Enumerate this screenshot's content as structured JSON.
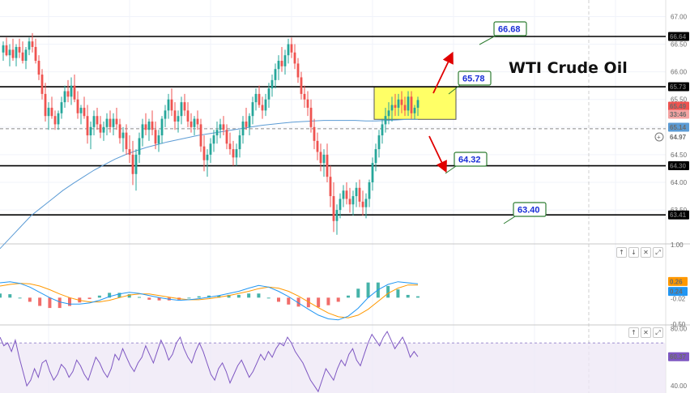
{
  "chart_data": {
    "type": "candlestick",
    "title": "WTI Crude Oil",
    "xlabel": "",
    "ylabel": "",
    "price_pane": {
      "ylim": [
        62.9,
        67.3
      ],
      "y_ticks": [
        63.5,
        64.0,
        64.5,
        65.0,
        65.5,
        66.0,
        66.5,
        67.0
      ],
      "y_tick_labels": [
        "63.50",
        "64.00",
        "64.50",
        "65.00",
        "65.50",
        "66.00",
        "66.50",
        "67.00"
      ],
      "horizontal_levels": [
        66.64,
        65.73,
        64.3,
        63.41
      ],
      "level_labels": [
        "66.64",
        "65.73",
        "64.30",
        "63.41"
      ],
      "dashed_line": 64.97,
      "dashed_line_label": "64.97",
      "last_price_label": "65.49",
      "countdown_label": "33:46",
      "moving_average_label": "65.14",
      "highlight_zone": [
        65.14,
        65.73
      ],
      "callouts": [
        "66.68",
        "65.78",
        "64.32",
        "63.40"
      ],
      "candles_ohlc": [
        [
          66.35,
          66.55,
          66.2,
          66.48
        ],
        [
          66.48,
          66.62,
          66.28,
          66.3
        ],
        [
          66.3,
          66.5,
          66.1,
          66.4
        ],
        [
          66.4,
          66.6,
          66.2,
          66.25
        ],
        [
          66.25,
          66.5,
          66.1,
          66.45
        ],
        [
          66.45,
          66.6,
          66.25,
          66.35
        ],
        [
          66.35,
          66.55,
          66.15,
          66.2
        ],
        [
          66.2,
          66.45,
          66.05,
          66.4
        ],
        [
          66.4,
          66.62,
          66.3,
          66.55
        ],
        [
          66.55,
          66.7,
          66.35,
          66.45
        ],
        [
          66.45,
          66.6,
          66.15,
          66.2
        ],
        [
          66.2,
          66.3,
          65.85,
          65.95
        ],
        [
          65.95,
          66.05,
          65.5,
          65.6
        ],
        [
          65.6,
          65.8,
          65.1,
          65.2
        ],
        [
          65.2,
          65.45,
          64.95,
          65.35
        ],
        [
          65.35,
          65.55,
          65.15,
          65.2
        ],
        [
          65.2,
          65.3,
          64.95,
          65.05
        ],
        [
          65.05,
          65.3,
          64.95,
          65.25
        ],
        [
          65.25,
          65.55,
          65.15,
          65.45
        ],
        [
          65.45,
          65.75,
          65.35,
          65.65
        ],
        [
          65.65,
          65.85,
          65.45,
          65.55
        ],
        [
          65.55,
          65.9,
          65.4,
          65.75
        ],
        [
          65.75,
          65.95,
          65.45,
          65.5
        ],
        [
          65.5,
          65.65,
          65.15,
          65.25
        ],
        [
          65.25,
          65.4,
          65.05,
          65.35
        ],
        [
          65.35,
          65.55,
          65.15,
          65.2
        ],
        [
          65.2,
          65.4,
          64.7,
          64.85
        ],
        [
          64.85,
          65.1,
          64.6,
          65.0
        ],
        [
          65.0,
          65.3,
          64.85,
          65.2
        ],
        [
          65.2,
          65.35,
          64.95,
          65.05
        ],
        [
          65.05,
          65.2,
          64.8,
          64.9
        ],
        [
          64.9,
          65.1,
          64.75,
          65.0
        ],
        [
          65.0,
          65.25,
          64.85,
          65.15
        ],
        [
          65.15,
          65.3,
          64.9,
          65.0
        ],
        [
          65.0,
          65.25,
          64.85,
          65.15
        ],
        [
          65.15,
          65.35,
          64.95,
          65.05
        ],
        [
          65.05,
          65.15,
          64.7,
          64.8
        ],
        [
          64.8,
          65.0,
          64.55,
          64.9
        ],
        [
          64.9,
          65.05,
          64.5,
          64.6
        ],
        [
          64.6,
          64.85,
          64.35,
          64.5
        ],
        [
          64.5,
          64.75,
          63.95,
          64.15
        ],
        [
          64.15,
          64.6,
          63.85,
          64.5
        ],
        [
          64.5,
          64.9,
          64.35,
          64.8
        ],
        [
          64.8,
          65.15,
          64.65,
          65.05
        ],
        [
          65.05,
          65.25,
          64.85,
          64.95
        ],
        [
          64.95,
          65.15,
          64.75,
          65.1
        ],
        [
          65.1,
          65.3,
          64.85,
          64.95
        ],
        [
          64.95,
          65.1,
          64.6,
          64.7
        ],
        [
          64.7,
          64.95,
          64.55,
          64.85
        ],
        [
          64.85,
          65.2,
          64.7,
          65.15
        ],
        [
          65.15,
          65.4,
          65.0,
          65.3
        ],
        [
          65.3,
          65.6,
          65.15,
          65.5
        ],
        [
          65.5,
          65.7,
          65.2,
          65.3
        ],
        [
          65.3,
          65.45,
          64.95,
          65.1
        ],
        [
          65.1,
          65.3,
          64.9,
          65.2
        ],
        [
          65.2,
          65.55,
          65.05,
          65.45
        ],
        [
          65.45,
          65.6,
          65.2,
          65.3
        ],
        [
          65.3,
          65.45,
          65.0,
          65.1
        ],
        [
          65.1,
          65.25,
          64.9,
          65.0
        ],
        [
          65.0,
          65.2,
          64.85,
          65.15
        ],
        [
          65.15,
          65.3,
          64.95,
          65.05
        ],
        [
          65.05,
          65.15,
          64.55,
          64.65
        ],
        [
          64.65,
          64.85,
          64.2,
          64.4
        ],
        [
          64.4,
          64.6,
          64.1,
          64.5
        ],
        [
          64.5,
          64.8,
          64.35,
          64.7
        ],
        [
          64.7,
          64.95,
          64.55,
          64.85
        ],
        [
          64.85,
          65.1,
          64.7,
          64.95
        ],
        [
          64.95,
          65.15,
          64.8,
          65.05
        ],
        [
          65.05,
          65.2,
          64.85,
          64.95
        ],
        [
          64.95,
          65.05,
          64.6,
          64.7
        ],
        [
          64.7,
          64.9,
          64.5,
          64.6
        ],
        [
          64.6,
          64.75,
          64.3,
          64.45
        ],
        [
          64.45,
          64.7,
          64.3,
          64.6
        ],
        [
          64.6,
          64.95,
          64.45,
          64.85
        ],
        [
          64.85,
          65.2,
          64.7,
          65.1
        ],
        [
          65.1,
          65.35,
          64.95,
          65.0
        ],
        [
          65.0,
          65.25,
          64.85,
          65.2
        ],
        [
          65.2,
          65.55,
          65.05,
          65.45
        ],
        [
          65.45,
          65.7,
          65.3,
          65.6
        ],
        [
          65.6,
          65.75,
          65.35,
          65.4
        ],
        [
          65.4,
          65.55,
          65.15,
          65.3
        ],
        [
          65.3,
          65.6,
          65.2,
          65.5
        ],
        [
          65.5,
          65.8,
          65.35,
          65.7
        ],
        [
          65.7,
          65.95,
          65.55,
          65.85
        ],
        [
          65.85,
          66.15,
          65.7,
          66.05
        ],
        [
          66.05,
          66.3,
          65.85,
          66.2
        ],
        [
          66.2,
          66.45,
          66.0,
          66.1
        ],
        [
          66.1,
          66.4,
          65.95,
          66.3
        ],
        [
          66.3,
          66.6,
          66.15,
          66.5
        ],
        [
          66.5,
          66.62,
          66.25,
          66.35
        ],
        [
          66.35,
          66.5,
          66.05,
          66.15
        ],
        [
          66.15,
          66.25,
          65.8,
          65.9
        ],
        [
          65.9,
          66.0,
          65.5,
          65.6
        ],
        [
          65.6,
          65.75,
          65.35,
          65.5
        ],
        [
          65.5,
          65.65,
          65.2,
          65.35
        ],
        [
          65.35,
          65.5,
          64.9,
          65.0
        ],
        [
          65.0,
          65.15,
          64.6,
          64.75
        ],
        [
          64.75,
          64.9,
          64.4,
          64.55
        ],
        [
          64.55,
          64.7,
          64.2,
          64.35
        ],
        [
          64.35,
          64.6,
          64.1,
          64.5
        ],
        [
          64.5,
          64.7,
          64.0,
          64.1
        ],
        [
          64.1,
          64.3,
          63.55,
          63.75
        ],
        [
          63.75,
          64.0,
          63.1,
          63.3
        ],
        [
          63.3,
          63.6,
          63.05,
          63.5
        ],
        [
          63.5,
          63.8,
          63.35,
          63.7
        ],
        [
          63.7,
          63.95,
          63.55,
          63.85
        ],
        [
          63.85,
          64.0,
          63.6,
          63.7
        ],
        [
          63.7,
          63.9,
          63.45,
          63.6
        ],
        [
          63.6,
          63.85,
          63.4,
          63.75
        ],
        [
          63.75,
          64.0,
          63.55,
          63.9
        ],
        [
          63.9,
          64.05,
          63.55,
          63.65
        ],
        [
          63.65,
          63.85,
          63.4,
          63.55
        ],
        [
          63.55,
          63.8,
          63.35,
          63.7
        ],
        [
          63.7,
          64.05,
          63.55,
          64.0
        ],
        [
          64.0,
          64.45,
          63.85,
          64.35
        ],
        [
          64.35,
          64.7,
          64.2,
          64.6
        ],
        [
          64.6,
          64.95,
          64.45,
          64.85
        ],
        [
          64.85,
          65.15,
          64.7,
          65.05
        ],
        [
          65.05,
          65.35,
          64.9,
          65.2
        ],
        [
          65.2,
          65.45,
          65.05,
          65.3
        ],
        [
          65.3,
          65.55,
          65.1,
          65.4
        ],
        [
          65.4,
          65.6,
          65.2,
          65.35
        ],
        [
          65.35,
          65.6,
          65.2,
          65.5
        ],
        [
          65.5,
          65.65,
          65.25,
          65.4
        ],
        [
          65.4,
          65.55,
          65.2,
          65.3
        ],
        [
          65.3,
          65.65,
          65.2,
          65.55
        ],
        [
          65.55,
          65.65,
          65.15,
          65.25
        ],
        [
          65.25,
          65.4,
          65.14,
          65.35
        ],
        [
          65.35,
          65.55,
          65.2,
          65.49
        ]
      ],
      "moving_average": [
        62.8,
        63.0,
        63.2,
        63.4,
        63.55,
        63.7,
        63.85,
        63.98,
        64.1,
        64.22,
        64.32,
        64.42,
        64.5,
        64.57,
        64.63,
        64.68,
        64.73,
        64.77,
        64.81,
        64.85,
        64.88,
        64.91,
        64.94,
        64.97,
        65.0,
        65.03,
        65.05,
        65.07,
        65.09,
        65.1,
        65.11,
        65.12,
        65.12,
        65.12,
        65.12,
        65.11,
        65.11,
        65.12,
        65.13,
        65.14,
        65.14
      ]
    },
    "macd_pane": {
      "ylim": [
        -0.5,
        1.0
      ],
      "y_tick_labels": [
        "1.00",
        "-0.50"
      ],
      "value_labels": [
        "0.26",
        "0.24",
        "-0.02"
      ],
      "macd": [
        0.28,
        0.3,
        0.27,
        0.2,
        0.1,
        0.0,
        -0.08,
        -0.12,
        -0.12,
        -0.1,
        -0.05,
        0.02,
        0.07,
        0.1,
        0.08,
        0.04,
        0.0,
        -0.03,
        -0.05,
        -0.04,
        -0.02,
        0.01,
        0.04,
        0.08,
        0.12,
        0.18,
        0.23,
        0.2,
        0.12,
        0.02,
        -0.1,
        -0.22,
        -0.33,
        -0.4,
        -0.42,
        -0.35,
        -0.2,
        0.0,
        0.15,
        0.25,
        0.3,
        0.28,
        0.26
      ],
      "signal": [
        0.22,
        0.25,
        0.27,
        0.26,
        0.22,
        0.15,
        0.07,
        0.0,
        -0.05,
        -0.08,
        -0.08,
        -0.05,
        0.0,
        0.05,
        0.07,
        0.07,
        0.04,
        0.01,
        -0.02,
        -0.04,
        -0.04,
        -0.02,
        0.01,
        0.04,
        0.08,
        0.12,
        0.17,
        0.2,
        0.18,
        0.12,
        0.03,
        -0.08,
        -0.19,
        -0.29,
        -0.36,
        -0.38,
        -0.33,
        -0.22,
        -0.07,
        0.08,
        0.18,
        0.24,
        0.24
      ]
    },
    "rsi_pane": {
      "ylim": [
        35,
        82
      ],
      "band": [
        30,
        70
      ],
      "y_tick_labels": [
        "80.00",
        "40.00"
      ],
      "value_label": "60.37",
      "rsi": [
        74,
        68,
        70,
        64,
        72,
        60,
        50,
        40,
        44,
        52,
        46,
        56,
        58,
        50,
        44,
        48,
        55,
        52,
        46,
        50,
        58,
        54,
        48,
        44,
        52,
        60,
        56,
        50,
        46,
        52,
        62,
        58,
        66,
        60,
        54,
        50,
        56,
        60,
        68,
        62,
        56,
        64,
        72,
        66,
        58,
        62,
        70,
        74,
        66,
        60,
        56,
        64,
        70,
        64,
        56,
        48,
        44,
        52,
        56,
        50,
        42,
        48,
        54,
        58,
        52,
        46,
        50,
        56,
        62,
        58,
        64,
        60,
        66,
        70,
        68,
        74,
        70,
        64,
        60,
        56,
        50,
        44,
        40,
        36,
        44,
        52,
        48,
        44,
        52,
        58,
        54,
        62,
        66,
        58,
        54,
        62,
        70,
        76,
        72,
        68,
        74,
        78,
        72,
        66,
        70,
        74,
        68,
        60,
        64,
        60.37
      ]
    },
    "annotations": {
      "toolbar_icons": [
        "arrow-up-icon",
        "arrow-down-icon",
        "close-icon",
        "maximize-icon"
      ]
    },
    "colors": {
      "bull": "#26a69a",
      "bear": "#ef5350",
      "moving_average": "#5b9bd5",
      "macd_line": "#2196f3",
      "signal_line": "#ff9800",
      "rsi_line": "#7e57c2",
      "rsi_band": "#ede7f6",
      "zone_fill": "#ffff66",
      "callout_border": "#2e7d32",
      "arrow": "#e00000",
      "price_badge": "#ef5350",
      "ma_badge": "#5b9bd5",
      "macd_badge": "#ff9800",
      "signal_badge": "#2196f3",
      "rsi_badge": "#7e57c2"
    }
  }
}
